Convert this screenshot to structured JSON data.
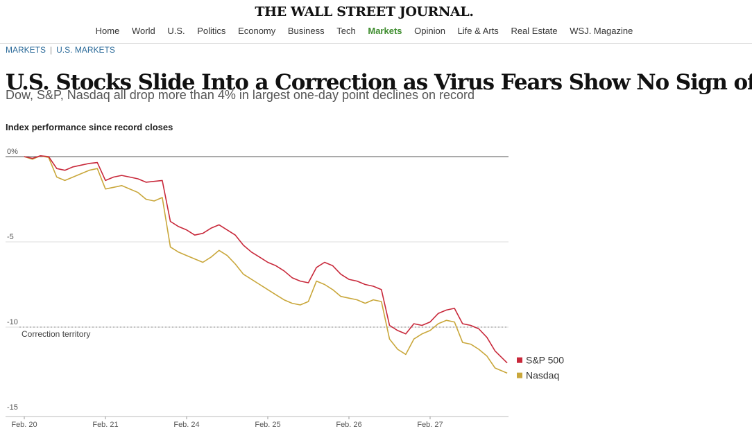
{
  "masthead": "THE WALL STREET JOURNAL.",
  "nav": {
    "items": [
      "Home",
      "World",
      "U.S.",
      "Politics",
      "Economy",
      "Business",
      "Tech",
      "Markets",
      "Opinion",
      "Life & Arts",
      "Real Estate",
      "WSJ. Magazine"
    ],
    "active": "Markets",
    "active_color": "#3f8d2f"
  },
  "breadcrumb": {
    "section": "MARKETS",
    "subsection": "U.S. MARKETS"
  },
  "headline": "U.S. Stocks Slide Into a Correction as Virus Fears Show No Sign of Easing",
  "dek": "Dow, S&P, Nasdaq all drop more than 4% in largest one-day point declines on record",
  "chart_data": {
    "type": "line",
    "title": "Index performance since record closes",
    "xlabel": "",
    "ylabel": "",
    "x_ticks": [
      "Feb. 20",
      "Feb. 21",
      "Feb. 24",
      "Feb. 25",
      "Feb. 26",
      "Feb. 27"
    ],
    "y_ticks": [
      "0%",
      "-5",
      "-10",
      "-15"
    ],
    "ylim": [
      -15,
      0
    ],
    "grid": "horizontal",
    "reference_line": {
      "value": -10,
      "label": "Correction territory",
      "style": "dotted"
    },
    "legend_position": "right, at line ends",
    "series": [
      {
        "name": "S&P 500",
        "color": "#c8283a",
        "x": [
          0,
          0.1,
          0.2,
          0.3,
          0.4,
          0.5,
          0.6,
          0.7,
          0.8,
          0.9,
          1.0,
          1.1,
          1.2,
          1.3,
          1.4,
          1.5,
          1.6,
          1.7,
          1.8,
          1.9,
          2.0,
          2.1,
          2.2,
          2.3,
          2.4,
          2.5,
          2.6,
          2.7,
          2.8,
          2.9,
          3.0,
          3.1,
          3.2,
          3.3,
          3.4,
          3.5,
          3.6,
          3.7,
          3.8,
          3.9,
          4.0,
          4.1,
          4.2,
          4.3,
          4.4,
          4.5,
          4.6,
          4.7,
          4.8,
          4.9,
          5.0,
          5.1,
          5.2,
          5.3,
          5.4,
          5.5,
          5.6,
          5.7,
          5.8,
          5.95
        ],
        "values": [
          0,
          -0.1,
          0.05,
          0,
          -0.7,
          -0.8,
          -0.6,
          -0.5,
          -0.4,
          -0.35,
          -1.4,
          -1.2,
          -1.1,
          -1.2,
          -1.3,
          -1.5,
          -1.45,
          -1.4,
          -3.8,
          -4.1,
          -4.3,
          -4.6,
          -4.5,
          -4.2,
          -4.0,
          -4.3,
          -4.6,
          -5.2,
          -5.6,
          -5.9,
          -6.2,
          -6.4,
          -6.7,
          -7.1,
          -7.3,
          -7.4,
          -6.5,
          -6.2,
          -6.4,
          -6.9,
          -7.2,
          -7.3,
          -7.5,
          -7.6,
          -7.8,
          -9.9,
          -10.2,
          -10.4,
          -9.8,
          -9.9,
          -9.7,
          -9.2,
          -9.0,
          -8.9,
          -9.8,
          -9.9,
          -10.1,
          -10.6,
          -11.4,
          -12.1
        ]
      },
      {
        "name": "Nasdaq",
        "color": "#c9a73b",
        "x": [
          0,
          0.1,
          0.2,
          0.3,
          0.4,
          0.5,
          0.6,
          0.7,
          0.8,
          0.9,
          1.0,
          1.1,
          1.2,
          1.3,
          1.4,
          1.5,
          1.6,
          1.7,
          1.8,
          1.9,
          2.0,
          2.1,
          2.2,
          2.3,
          2.4,
          2.5,
          2.6,
          2.7,
          2.8,
          2.9,
          3.0,
          3.1,
          3.2,
          3.3,
          3.4,
          3.5,
          3.6,
          3.7,
          3.8,
          3.9,
          4.0,
          4.1,
          4.2,
          4.3,
          4.4,
          4.5,
          4.6,
          4.7,
          4.8,
          4.9,
          5.0,
          5.1,
          5.2,
          5.3,
          5.4,
          5.5,
          5.6,
          5.7,
          5.8,
          5.95
        ],
        "values": [
          0,
          -0.15,
          0.05,
          -0.05,
          -1.2,
          -1.4,
          -1.2,
          -1.0,
          -0.8,
          -0.7,
          -1.9,
          -1.8,
          -1.7,
          -1.9,
          -2.1,
          -2.5,
          -2.6,
          -2.4,
          -5.3,
          -5.6,
          -5.8,
          -6.0,
          -6.2,
          -5.9,
          -5.5,
          -5.8,
          -6.3,
          -6.9,
          -7.2,
          -7.5,
          -7.8,
          -8.1,
          -8.4,
          -8.6,
          -8.7,
          -8.5,
          -7.3,
          -7.5,
          -7.8,
          -8.2,
          -8.3,
          -8.4,
          -8.6,
          -8.4,
          -8.5,
          -10.7,
          -11.3,
          -11.6,
          -10.7,
          -10.4,
          -10.2,
          -9.8,
          -9.6,
          -9.7,
          -10.9,
          -11.0,
          -11.3,
          -11.7,
          -12.4,
          -12.7
        ]
      }
    ]
  }
}
